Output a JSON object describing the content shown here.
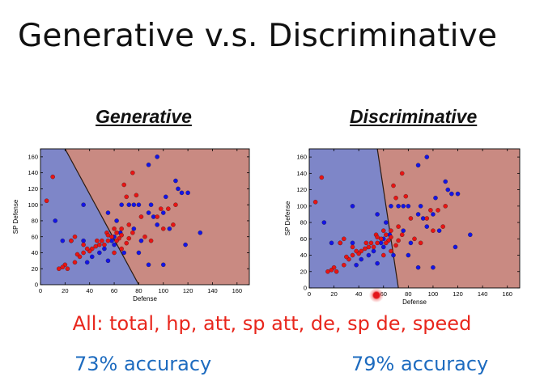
{
  "slide": {
    "title": "Generative v.s. Discriminative",
    "features_text": "All: total, hp, att, sp att, de, sp de, speed",
    "left_accuracy": "73% accuracy",
    "right_accuracy": "79% accuracy"
  },
  "colors": {
    "region_blue": "#7e86c8",
    "region_red": "#c98a82",
    "point_blue": "#1414e6",
    "point_red": "#e81414",
    "title": "#111111",
    "features_text": "#e8261c",
    "accuracy_text": "#1d6bbf"
  },
  "chart_data": [
    {
      "type": "scatter",
      "title": "Generative",
      "xlabel": "Defense",
      "ylabel": "SP Defense",
      "xlim": [
        0,
        170
      ],
      "ylim": [
        0,
        170
      ],
      "xticks": [
        "0",
        "20",
        "40",
        "60",
        "80",
        "100",
        "120",
        "140",
        "160"
      ],
      "yticks": [
        "0",
        "20",
        "40",
        "60",
        "80",
        "100",
        "120",
        "140",
        "160"
      ],
      "grid": false,
      "decision_boundary": [
        [
          20,
          170
        ],
        [
          80,
          0
        ]
      ],
      "regions": {
        "left": "blue",
        "right": "red"
      },
      "series": [
        {
          "color": "blue",
          "points": [
            [
              95,
              160
            ],
            [
              88,
              150
            ],
            [
              35,
              100
            ],
            [
              55,
              90
            ],
            [
              62,
              80
            ],
            [
              66,
              100
            ],
            [
              72,
              100
            ],
            [
              76,
              100
            ],
            [
              80,
              100
            ],
            [
              90,
              100
            ],
            [
              88,
              90
            ],
            [
              92,
              85
            ],
            [
              95,
              75
            ],
            [
              100,
              90
            ],
            [
              102,
              110
            ],
            [
              110,
              130
            ],
            [
              112,
              120
            ],
            [
              115,
              115
            ],
            [
              120,
              115
            ],
            [
              105,
              70
            ],
            [
              82,
              55
            ],
            [
              76,
              70
            ],
            [
              65,
              65
            ],
            [
              60,
              60
            ],
            [
              58,
              55
            ],
            [
              52,
              45
            ],
            [
              48,
              40
            ],
            [
              42,
              35
            ],
            [
              38,
              28
            ],
            [
              55,
              30
            ],
            [
              68,
              40
            ],
            [
              80,
              40
            ],
            [
              88,
              25
            ],
            [
              100,
              25
            ],
            [
              130,
              65
            ],
            [
              118,
              50
            ],
            [
              18,
              55
            ],
            [
              12,
              80
            ],
            [
              25,
              55
            ],
            [
              35,
              55
            ],
            [
              60,
              50
            ]
          ]
        },
        {
          "color": "red",
          "points": [
            [
              10,
              135
            ],
            [
              5,
              105
            ],
            [
              75,
              140
            ],
            [
              70,
              110
            ],
            [
              68,
              125
            ],
            [
              78,
              112
            ],
            [
              82,
              85
            ],
            [
              98,
              95
            ],
            [
              104,
              95
            ],
            [
              110,
              100
            ],
            [
              95,
              85
            ],
            [
              108,
              75
            ],
            [
              100,
              70
            ],
            [
              90,
              55
            ],
            [
              85,
              60
            ],
            [
              72,
              75
            ],
            [
              75,
              65
            ],
            [
              66,
              70
            ],
            [
              62,
              65
            ],
            [
              60,
              70
            ],
            [
              64,
              58
            ],
            [
              62,
              55
            ],
            [
              58,
              60
            ],
            [
              55,
              55
            ],
            [
              52,
              50
            ],
            [
              50,
              55
            ],
            [
              48,
              50
            ],
            [
              45,
              48
            ],
            [
              42,
              45
            ],
            [
              40,
              42
            ],
            [
              35,
              40
            ],
            [
              32,
              35
            ],
            [
              28,
              28
            ],
            [
              20,
              25
            ],
            [
              15,
              20
            ],
            [
              25,
              55
            ],
            [
              28,
              60
            ],
            [
              35,
              50
            ],
            [
              38,
              45
            ],
            [
              46,
              55
            ],
            [
              54,
              65
            ],
            [
              66,
              45
            ],
            [
              70,
              52
            ],
            [
              72,
              58
            ],
            [
              60,
              40
            ],
            [
              18,
              22
            ],
            [
              22,
              20
            ],
            [
              30,
              38
            ],
            [
              55,
              62
            ],
            [
              66,
              62
            ]
          ]
        }
      ]
    },
    {
      "type": "scatter",
      "title": "Discriminative",
      "xlabel": "Defense",
      "ylabel": "SP Defense",
      "xlim": [
        0,
        170
      ],
      "ylim": [
        0,
        170
      ],
      "xticks": [
        "0",
        "20",
        "40",
        "60",
        "80",
        "100",
        "120",
        "140",
        "160"
      ],
      "yticks": [
        "0",
        "20",
        "40",
        "60",
        "80",
        "100",
        "120",
        "140",
        "160"
      ],
      "grid": false,
      "decision_boundary": [
        [
          55,
          170
        ],
        [
          72,
          0
        ]
      ],
      "regions": {
        "left": "blue",
        "right": "red"
      },
      "series": [
        {
          "color": "blue",
          "points": [
            [
              95,
              160
            ],
            [
              88,
              150
            ],
            [
              35,
              100
            ],
            [
              55,
              90
            ],
            [
              62,
              80
            ],
            [
              66,
              100
            ],
            [
              72,
              100
            ],
            [
              76,
              100
            ],
            [
              80,
              100
            ],
            [
              90,
              100
            ],
            [
              88,
              90
            ],
            [
              92,
              85
            ],
            [
              95,
              75
            ],
            [
              100,
              90
            ],
            [
              102,
              110
            ],
            [
              110,
              130
            ],
            [
              112,
              120
            ],
            [
              115,
              115
            ],
            [
              120,
              115
            ],
            [
              105,
              70
            ],
            [
              82,
              55
            ],
            [
              76,
              70
            ],
            [
              65,
              65
            ],
            [
              60,
              60
            ],
            [
              58,
              55
            ],
            [
              52,
              45
            ],
            [
              48,
              40
            ],
            [
              42,
              35
            ],
            [
              38,
              28
            ],
            [
              55,
              30
            ],
            [
              68,
              40
            ],
            [
              80,
              40
            ],
            [
              88,
              25
            ],
            [
              100,
              25
            ],
            [
              130,
              65
            ],
            [
              118,
              50
            ],
            [
              18,
              55
            ],
            [
              12,
              80
            ],
            [
              25,
              55
            ],
            [
              35,
              55
            ],
            [
              60,
              50
            ]
          ]
        },
        {
          "color": "red",
          "points": [
            [
              10,
              135
            ],
            [
              5,
              105
            ],
            [
              75,
              140
            ],
            [
              70,
              110
            ],
            [
              68,
              125
            ],
            [
              78,
              112
            ],
            [
              82,
              85
            ],
            [
              98,
              95
            ],
            [
              104,
              95
            ],
            [
              110,
              100
            ],
            [
              95,
              85
            ],
            [
              108,
              75
            ],
            [
              100,
              70
            ],
            [
              90,
              55
            ],
            [
              85,
              60
            ],
            [
              72,
              75
            ],
            [
              75,
              65
            ],
            [
              66,
              70
            ],
            [
              62,
              65
            ],
            [
              60,
              70
            ],
            [
              64,
              58
            ],
            [
              62,
              55
            ],
            [
              58,
              60
            ],
            [
              55,
              55
            ],
            [
              52,
              50
            ],
            [
              50,
              55
            ],
            [
              48,
              50
            ],
            [
              45,
              48
            ],
            [
              42,
              45
            ],
            [
              40,
              42
            ],
            [
              35,
              40
            ],
            [
              32,
              35
            ],
            [
              28,
              28
            ],
            [
              20,
              25
            ],
            [
              15,
              20
            ],
            [
              25,
              55
            ],
            [
              28,
              60
            ],
            [
              35,
              50
            ],
            [
              38,
              45
            ],
            [
              46,
              55
            ],
            [
              54,
              65
            ],
            [
              66,
              45
            ],
            [
              70,
              52
            ],
            [
              72,
              58
            ],
            [
              60,
              40
            ],
            [
              18,
              22
            ],
            [
              22,
              20
            ],
            [
              30,
              38
            ],
            [
              55,
              62
            ],
            [
              66,
              62
            ]
          ]
        }
      ]
    }
  ]
}
